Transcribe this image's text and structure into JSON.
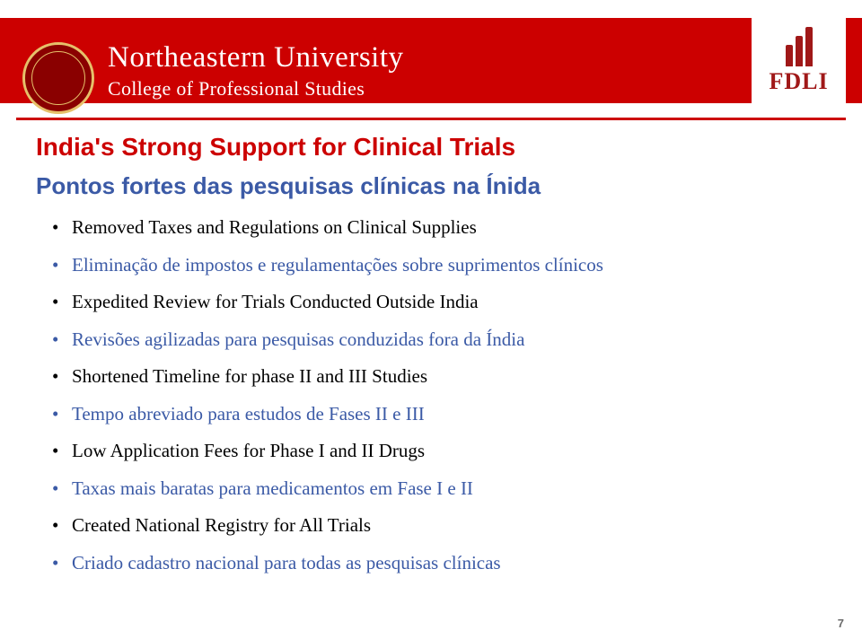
{
  "header": {
    "uni_name": "Northeastern University",
    "uni_sub": "College of Professional Studies",
    "fdli_label": "FDLI"
  },
  "title": "India's Strong Support for Clinical Trials",
  "subtitle": "Pontos fortes das pesquisas clínicas na Ínida",
  "bullets": [
    {
      "text": "Removed Taxes and Regulations on Clinical Supplies",
      "cls": "black"
    },
    {
      "text": "Eliminação de impostos e regulamentações sobre suprimentos clínicos",
      "cls": "blue"
    },
    {
      "text": "Expedited Review for Trials Conducted Outside India",
      "cls": "black"
    },
    {
      "text": "Revisões agilizadas para pesquisas conduzidas fora da Índia",
      "cls": "blue"
    },
    {
      "text": "Shortened Timeline for phase II and III Studies",
      "cls": "black"
    },
    {
      "text": "Tempo abreviado para estudos de Fases II e III",
      "cls": "blue"
    },
    {
      "text": "Low Application Fees for Phase I and II Drugs",
      "cls": "black"
    },
    {
      "text": "Taxas mais baratas para medicamentos em Fase I e II",
      "cls": "blue"
    },
    {
      "text": "Created National Registry for All Trials",
      "cls": "black"
    },
    {
      "text": "Criado cadastro nacional para todas as pesquisas clínicas",
      "cls": "blue"
    }
  ],
  "page_num": "7",
  "colors": {
    "red": "#c00",
    "blue": "#3b5aa6",
    "fdli_red": "#a01818"
  }
}
